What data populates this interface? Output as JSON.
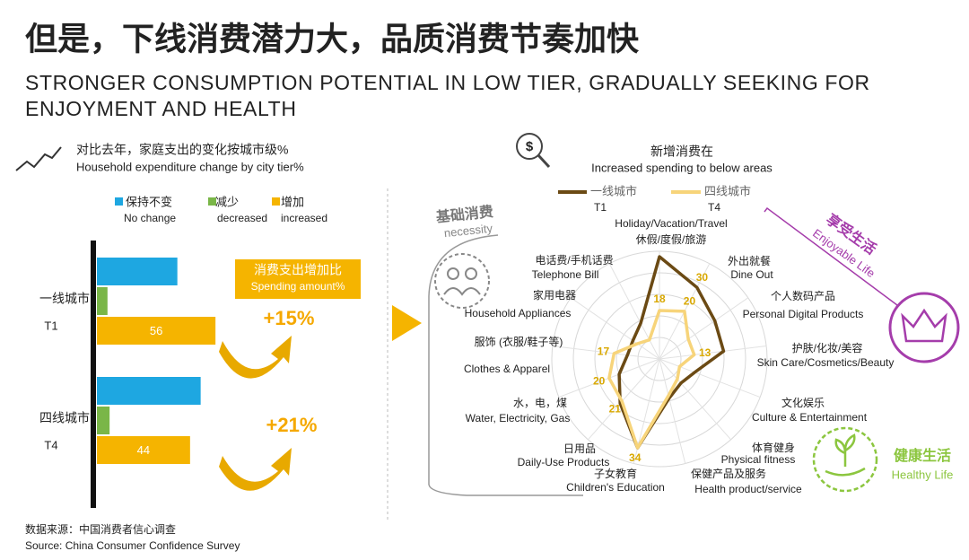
{
  "header": {
    "title": "但是，下线消费潜力大，品质消费节奏加快",
    "subtitle_lines": [
      "STRONGER CONSUMPTION POTENTIAL IN LOW TIER, GRADUALLY SEEKING FOR",
      "ENJOYMENT AND HEALTH"
    ]
  },
  "source": {
    "zh": "数据来源：中国消费者信心调查",
    "en": "Source: China Consumer Confidence Survey"
  },
  "chart_data": [
    {
      "type": "bar",
      "orientation": "horizontal",
      "title": "对比去年，家庭支出的变化按城市级%",
      "subtitle": "Household expenditure change by city tier%",
      "categories": [
        "一线城市",
        "四线城市"
      ],
      "category_codes": [
        "T1",
        "T4"
      ],
      "series": [
        {
          "name": "保持不变",
          "name_en": "No change",
          "color": "#1ea7e1",
          "values": [
            38,
            49
          ]
        },
        {
          "name": "减少",
          "name_en": "decreased",
          "color": "#7ab648",
          "values": [
            5,
            6
          ]
        },
        {
          "name": "增加",
          "name_en": "increased",
          "color": "#f5b400",
          "values": [
            56,
            44
          ],
          "value_labels": [
            "56",
            "44"
          ]
        }
      ],
      "annotation": {
        "title": "消费支出增加比",
        "subtitle": "Spending amount%",
        "changes": [
          "+15%",
          "+21%"
        ]
      }
    },
    {
      "type": "radar",
      "title": "新增消费在",
      "subtitle": "Increased spending to below areas",
      "rlim": [
        0,
        40
      ],
      "categories": [
        "休假/度假/旅游",
        "外出就餐",
        "个人数码产品",
        "护肤/化妆/美容",
        "文化娱乐",
        "体育健身",
        "保健产品及服务",
        "子女教育",
        "日用品",
        "水，电，煤",
        "服饰 (衣服/鞋子等)",
        "家用电器",
        "电话费/手机话费"
      ],
      "categories_en": [
        "Holiday/Vacation/Travel",
        "Dine Out",
        "Personal Digital Products",
        "Skin Care/Cosmetics/Beauty",
        "Culture & Entertainment",
        "Physical fitness",
        "Health product/service",
        "Children's Education",
        "Daily-Use Products",
        "Water, Electricity, Gas",
        "Clothes & Apparel",
        "Household Appliances",
        "Telephone Bill"
      ],
      "series": [
        {
          "name": "一线城市",
          "code": "T1",
          "color": "#6b4a14",
          "values": [
            38,
            30,
            25,
            24,
            14,
            12,
            15,
            34,
            22,
            16,
            12,
            12,
            15
          ],
          "value_labels": [
            null,
            "30",
            null,
            null,
            null,
            null,
            null,
            null,
            null,
            null,
            null,
            null,
            null
          ]
        },
        {
          "name": "四线城市",
          "code": "T4",
          "color": "#f7d47a",
          "values": [
            18,
            20,
            13,
            13,
            8,
            10,
            14,
            34,
            21,
            20,
            17,
            10,
            8
          ],
          "value_labels": [
            "18",
            "20",
            null,
            "13",
            null,
            null,
            null,
            "34",
            "21",
            "20",
            "17",
            null,
            null
          ]
        }
      ],
      "groups": [
        {
          "name": "基础消费",
          "name_en": "necessity"
        },
        {
          "name": "享受生活",
          "name_en": "Enjoyable Life"
        },
        {
          "name": "健康生活",
          "name_en": "Healthy Life"
        }
      ]
    }
  ]
}
